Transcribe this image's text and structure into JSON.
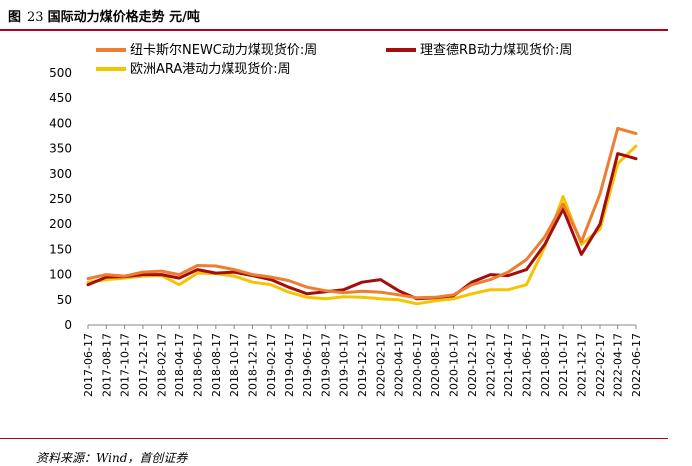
{
  "figure": {
    "prefix": "图",
    "number": "23",
    "title": "国际动力煤价格走势",
    "unit": "元/吨",
    "source": "资料来源：Wind，首创证券"
  },
  "chart_data": {
    "type": "line",
    "ylim": [
      0,
      500
    ],
    "yticks": [
      0,
      50,
      100,
      150,
      200,
      250,
      300,
      350,
      400,
      450,
      500
    ],
    "xticks": [
      "2017-06-17",
      "2017-08-17",
      "2017-10-17",
      "2017-12-17",
      "2018-02-17",
      "2018-04-17",
      "2018-06-17",
      "2018-08-17",
      "2018-10-17",
      "2018-12-17",
      "2019-02-17",
      "2019-04-17",
      "2019-06-17",
      "2019-08-17",
      "2019-10-17",
      "2019-12-17",
      "2020-02-17",
      "2020-04-17",
      "2020-06-17",
      "2020-08-17",
      "2020-10-17",
      "2020-12-17",
      "2021-02-17",
      "2021-04-17",
      "2021-06-17",
      "2021-08-17",
      "2021-10-17",
      "2021-12-17",
      "2022-02-17",
      "2022-04-17",
      "2022-06-17"
    ],
    "x": [
      "2017-06-17",
      "2017-08-17",
      "2017-10-17",
      "2017-12-17",
      "2018-02-17",
      "2018-04-17",
      "2018-06-17",
      "2018-08-17",
      "2018-10-17",
      "2018-12-17",
      "2019-02-17",
      "2019-04-17",
      "2019-06-17",
      "2019-08-17",
      "2019-10-17",
      "2019-12-17",
      "2020-02-17",
      "2020-04-17",
      "2020-06-17",
      "2020-08-17",
      "2020-10-17",
      "2020-12-17",
      "2021-02-17",
      "2021-04-17",
      "2021-06-17",
      "2021-08-17",
      "2021-10-17",
      "2021-12-17",
      "2022-02-17",
      "2022-04-17",
      "2022-06-17"
    ],
    "legend_position": "top",
    "grid": false,
    "series": [
      {
        "name": "纽卡斯尔NEWC动力煤现货价:周",
        "color": "#ed7d31",
        "values": [
          92,
          100,
          97,
          105,
          107,
          100,
          118,
          117,
          110,
          100,
          95,
          88,
          75,
          68,
          64,
          67,
          65,
          60,
          54,
          55,
          60,
          80,
          90,
          105,
          130,
          175,
          240,
          165,
          260,
          390,
          380
        ]
      },
      {
        "name": "理查德RB动力煤现货价:周",
        "color": "#a50d0d",
        "values": [
          80,
          95,
          96,
          100,
          100,
          93,
          110,
          103,
          105,
          98,
          90,
          75,
          62,
          66,
          70,
          85,
          90,
          68,
          52,
          54,
          58,
          85,
          100,
          98,
          110,
          160,
          230,
          140,
          200,
          340,
          330
        ]
      },
      {
        "name": "欧洲ARA港动力煤现货价:周",
        "color": "#f5c400",
        "values": [
          85,
          90,
          93,
          97,
          98,
          80,
          103,
          102,
          97,
          85,
          80,
          65,
          55,
          52,
          56,
          55,
          52,
          50,
          42,
          48,
          52,
          62,
          70,
          70,
          80,
          155,
          255,
          160,
          190,
          320,
          355
        ]
      }
    ]
  }
}
